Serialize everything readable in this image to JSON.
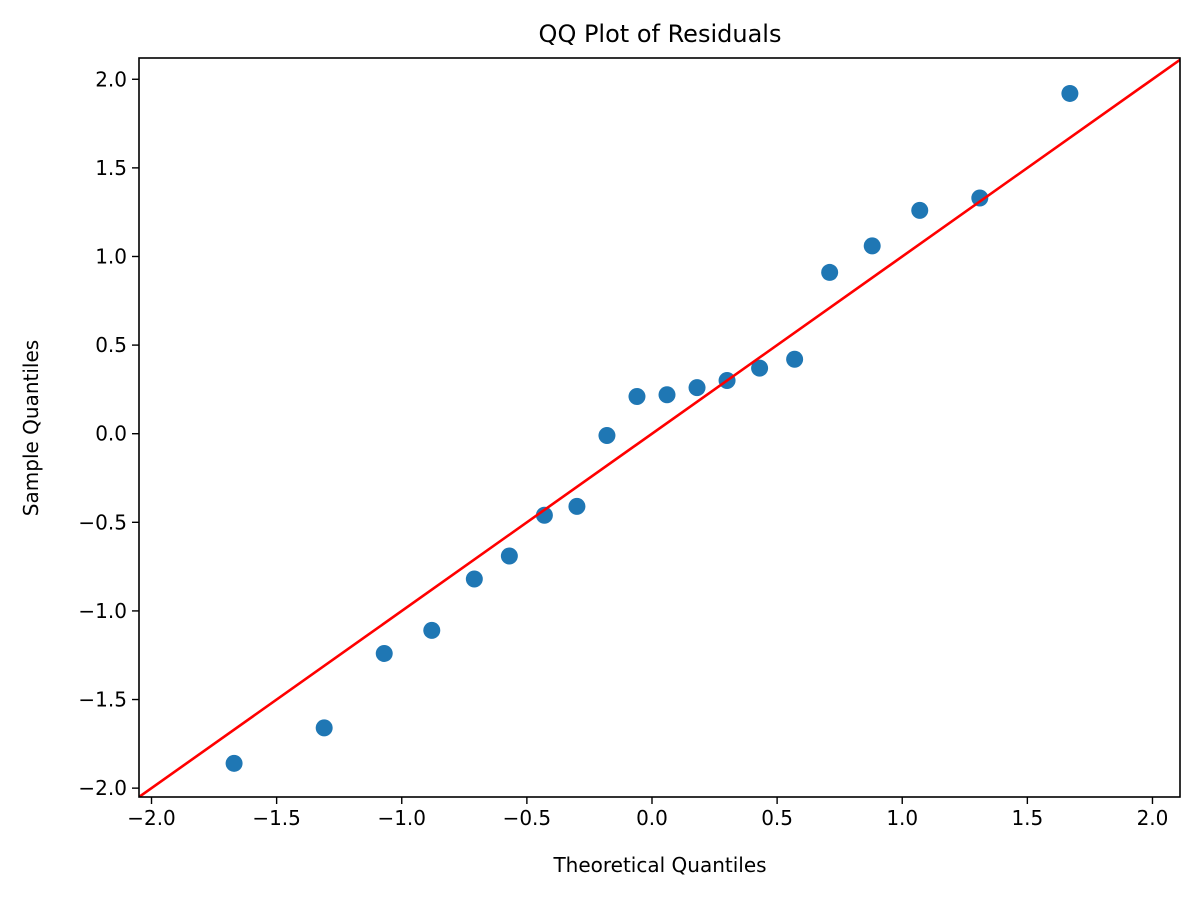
{
  "chart_data": {
    "type": "scatter",
    "title": "QQ Plot of Residuals",
    "xlabel": "Theoretical Quantiles",
    "ylabel": "Sample Quantiles",
    "xlim": [
      -2.05,
      2.11
    ],
    "ylim": [
      -2.05,
      2.12
    ],
    "xticks": [
      -2.0,
      -1.5,
      -1.0,
      -0.5,
      0.0,
      0.5,
      1.0,
      1.5,
      2.0
    ],
    "yticks": [
      -2.0,
      -1.5,
      -1.0,
      -0.5,
      0.0,
      0.5,
      1.0,
      1.5,
      2.0
    ],
    "xtick_labels": [
      "−2.0",
      "−1.5",
      "−1.0",
      "−0.5",
      "0.0",
      "0.5",
      "1.0",
      "1.5",
      "2.0"
    ],
    "ytick_labels": [
      "−2.0",
      "−1.5",
      "−1.0",
      "−0.5",
      "0.0",
      "0.5",
      "1.0",
      "1.5",
      "2.0"
    ],
    "grid": false,
    "points": {
      "color": "#1f77b4",
      "x": [
        -1.67,
        -1.31,
        -1.07,
        -0.88,
        -0.71,
        -0.57,
        -0.43,
        -0.3,
        -0.18,
        -0.06,
        0.06,
        0.18,
        0.3,
        0.43,
        0.57,
        0.71,
        0.88,
        1.07,
        1.31,
        1.67
      ],
      "y": [
        -1.86,
        -1.66,
        -1.24,
        -1.11,
        -0.82,
        -0.69,
        -0.46,
        -0.41,
        -0.01,
        0.21,
        0.22,
        0.26,
        0.3,
        0.37,
        0.42,
        0.91,
        1.06,
        1.26,
        1.33,
        1.92
      ]
    },
    "reference_line": {
      "color": "#ff0000",
      "x": [
        -2.05,
        2.11
      ],
      "y": [
        -2.05,
        2.11
      ]
    }
  }
}
